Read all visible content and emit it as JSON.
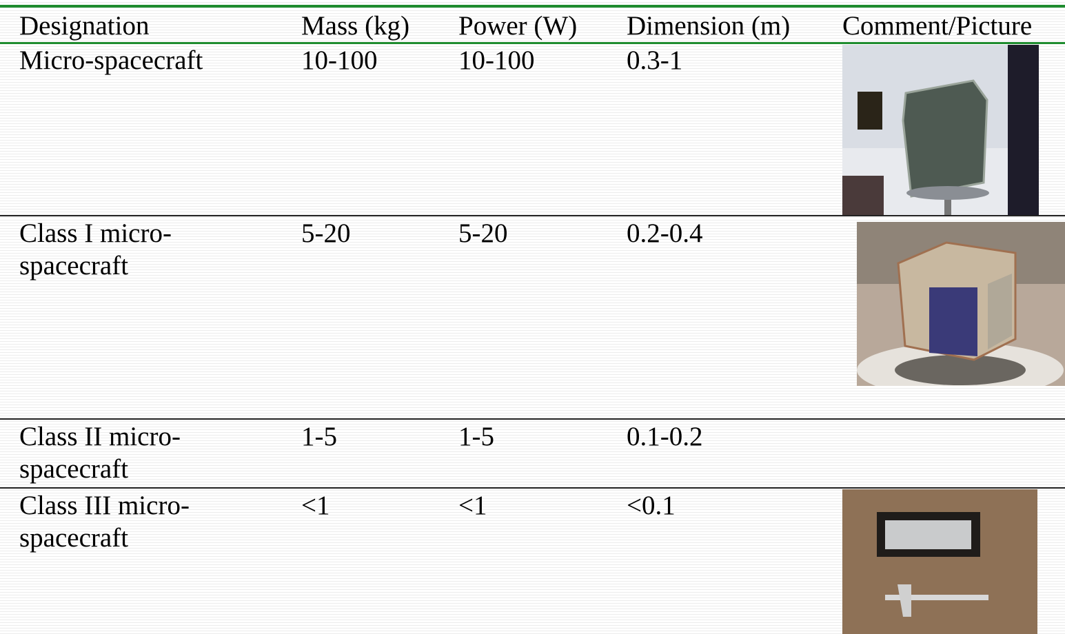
{
  "table": {
    "header": [
      "Designation",
      "Mass (kg)",
      "Power (W)",
      "Dimension (m)",
      "Comment/Picture"
    ],
    "rows": [
      [
        "Micro-spacecraft",
        "10-100",
        "10-100",
        "0.3-1"
      ],
      [
        "Class I micro-spacecraft",
        "5-20",
        "5-20",
        "0.2-0.4"
      ],
      [
        "Class II micro-spacecraft",
        "1-5",
        "1-5",
        "0.1-0.2"
      ],
      [
        "Class III micro-spacecraft",
        "<1",
        "<1",
        "<0.1"
      ]
    ]
  }
}
